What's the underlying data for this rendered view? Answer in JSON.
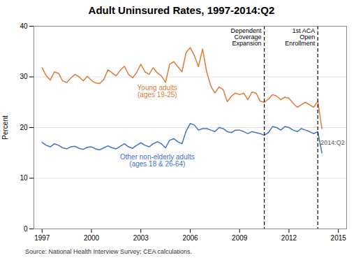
{
  "chart_data": {
    "type": "line",
    "title": "Adult Uninsured Rates, 1997-2014:Q2",
    "ylabel": "Percent",
    "source": "Source: National Health Interview Survey; CEA calculations.",
    "x": [
      1997,
      1997.25,
      1997.5,
      1997.75,
      1998,
      1998.25,
      1998.5,
      1998.75,
      1999,
      1999.25,
      1999.5,
      1999.75,
      2000,
      2000.25,
      2000.5,
      2000.75,
      2001,
      2001.25,
      2001.5,
      2001.75,
      2002,
      2002.25,
      2002.5,
      2002.75,
      2003,
      2003.25,
      2003.5,
      2003.75,
      2004,
      2004.25,
      2004.5,
      2004.75,
      2005,
      2005.25,
      2005.5,
      2005.75,
      2006,
      2006.25,
      2006.5,
      2006.75,
      2007,
      2007.25,
      2007.5,
      2007.75,
      2008,
      2008.25,
      2008.5,
      2008.75,
      2009,
      2009.25,
      2009.5,
      2009.75,
      2010,
      2010.25,
      2010.5,
      2010.75,
      2011,
      2011.25,
      2011.5,
      2011.75,
      2012,
      2012.25,
      2012.5,
      2012.75,
      2013,
      2013.25,
      2013.5,
      2013.75,
      2014
    ],
    "series": [
      {
        "name": "Young adults\n(ages 19-25)",
        "color": "#E07B39",
        "values": [
          31.8,
          30.2,
          29.4,
          31.0,
          30.7,
          29.2,
          28.9,
          29.8,
          30.5,
          30.0,
          29.2,
          30.1,
          29.3,
          28.8,
          28.7,
          29.5,
          31.4,
          30.8,
          30.2,
          31.3,
          32.1,
          30.5,
          29.8,
          30.9,
          32.5,
          31.0,
          30.5,
          31.8,
          30.8,
          30.2,
          28.9,
          32.5,
          33.0,
          32.0,
          31.0,
          34.8,
          35.8,
          34.2,
          32.0,
          35.5,
          31.0,
          28.2,
          26.8,
          28.0,
          27.5,
          25.1,
          26.2,
          26.8,
          26.5,
          26.8,
          25.5,
          27.0,
          26.8,
          25.2,
          25.0,
          25.6,
          26.5,
          26.2,
          25.5,
          26.0,
          25.8,
          24.8,
          24.0,
          24.5,
          25.0,
          24.5,
          24.0,
          25.2,
          19.8
        ]
      },
      {
        "name": "Other non-elderly adults\n(ages 18 & 26-64)",
        "color": "#4472C4",
        "values": [
          17.1,
          16.5,
          16.2,
          16.8,
          16.5,
          16.0,
          15.8,
          16.2,
          16.3,
          15.9,
          15.7,
          16.1,
          16.2,
          15.8,
          15.6,
          16.0,
          16.4,
          16.0,
          15.8,
          16.3,
          16.8,
          16.2,
          15.9,
          16.5,
          17.0,
          16.5,
          16.2,
          16.8,
          17.2,
          16.8,
          16.0,
          17.5,
          17.8,
          17.2,
          16.8,
          19.3,
          20.8,
          20.5,
          19.5,
          19.8,
          19.8,
          19.5,
          19.2,
          20.0,
          19.8,
          19.2,
          19.0,
          19.5,
          19.5,
          19.2,
          18.8,
          19.2,
          19.0,
          18.8,
          18.5,
          19.0,
          20.2,
          20.0,
          19.5,
          20.2,
          20.0,
          19.5,
          19.2,
          19.8,
          19.5,
          19.2,
          18.8,
          19.2,
          15.0
        ]
      }
    ],
    "vlines": [
      {
        "x": 2010.5,
        "label": "Dependent\nCoverage\nExpansion"
      },
      {
        "x": 2013.75,
        "label": "1st ACA\nOpen\nEnrollment"
      }
    ],
    "annotations": [
      {
        "text": "2014:Q2",
        "x": 2013.75,
        "y": 17.5
      }
    ],
    "xlim": [
      1996.5,
      2015.5
    ],
    "xticks": [
      1997,
      2000,
      2003,
      2006,
      2009,
      2012,
      2015
    ],
    "ylim": [
      0,
      40
    ],
    "yticks": [
      0,
      10,
      20,
      30,
      40
    ],
    "grid": true
  }
}
